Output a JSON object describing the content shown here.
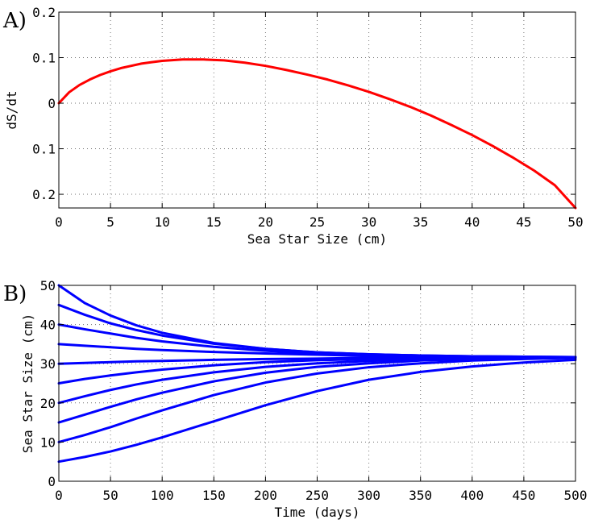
{
  "chart_data": [
    {
      "type": "line",
      "panel_label": "A)",
      "xlabel": "Sea Star Size (cm)",
      "ylabel": "dS/dt",
      "xlim": [
        0,
        50
      ],
      "ylim": [
        -0.23,
        0.2
      ],
      "x_ticks": [
        0,
        5,
        10,
        15,
        20,
        25,
        30,
        35,
        40,
        45,
        50
      ],
      "x_tick_labels": [
        "0",
        "5",
        "10",
        "15",
        "20",
        "25",
        "30",
        "35",
        "40",
        "45",
        "50"
      ],
      "y_ticks": [
        0.2,
        0.1,
        0,
        -0.1,
        -0.2
      ],
      "y_tick_labels": [
        "0.2",
        "0.1",
        "0",
        "0.1",
        "0.2"
      ],
      "grid": true,
      "color": "#ff0000",
      "series": [
        {
          "x": [
            0,
            1,
            2,
            3,
            4,
            5,
            6,
            7,
            8,
            9,
            10,
            12,
            14,
            16,
            18,
            20,
            22,
            24,
            26,
            28,
            30,
            32,
            34,
            36,
            38,
            40,
            42,
            44,
            46,
            48,
            50
          ],
          "y": [
            0.0,
            0.024,
            0.04,
            0.052,
            0.062,
            0.07,
            0.077,
            0.082,
            0.087,
            0.09,
            0.093,
            0.096,
            0.096,
            0.094,
            0.089,
            0.082,
            0.073,
            0.063,
            0.052,
            0.039,
            0.025,
            0.009,
            -0.008,
            -0.027,
            -0.048,
            -0.07,
            -0.094,
            -0.12,
            -0.148,
            -0.18,
            -0.23
          ]
        }
      ]
    },
    {
      "type": "line",
      "panel_label": "B)",
      "xlabel": "Time (days)",
      "ylabel": "Sea Star Size (cm)",
      "xlim": [
        0,
        500
      ],
      "ylim": [
        0,
        50
      ],
      "x_ticks": [
        0,
        50,
        100,
        150,
        200,
        250,
        300,
        350,
        400,
        450,
        500
      ],
      "x_tick_labels": [
        "0",
        "50",
        "100",
        "150",
        "200",
        "250",
        "300",
        "350",
        "400",
        "450",
        "500"
      ],
      "y_ticks": [
        0,
        10,
        20,
        30,
        40,
        50
      ],
      "y_tick_labels": [
        "0",
        "10",
        "20",
        "30",
        "40",
        "50"
      ],
      "grid": true,
      "color": "#0000ff",
      "series": [
        {
          "x": [
            0,
            25,
            50,
            75,
            100,
            150,
            200,
            250,
            300,
            350,
            400,
            450,
            500
          ],
          "y": [
            50,
            45.5,
            42.3,
            39.8,
            37.9,
            35.3,
            33.8,
            32.9,
            32.4,
            32.1,
            31.9,
            31.8,
            31.7
          ]
        },
        {
          "x": [
            0,
            25,
            50,
            75,
            100,
            150,
            200,
            250,
            300,
            350,
            400,
            450,
            500
          ],
          "y": [
            45,
            42.5,
            40.3,
            38.6,
            37.2,
            35.1,
            33.8,
            32.9,
            32.4,
            32.1,
            31.9,
            31.8,
            31.7
          ]
        },
        {
          "x": [
            0,
            25,
            50,
            75,
            100,
            150,
            200,
            250,
            300,
            350,
            400,
            450,
            500
          ],
          "y": [
            40,
            38.8,
            37.7,
            36.6,
            35.7,
            34.3,
            33.3,
            32.6,
            32.2,
            32.0,
            31.8,
            31.7,
            31.7
          ]
        },
        {
          "x": [
            0,
            25,
            50,
            75,
            100,
            150,
            200,
            250,
            300,
            350,
            400,
            450,
            500
          ],
          "y": [
            35,
            34.6,
            34.2,
            33.8,
            33.5,
            33.0,
            32.6,
            32.3,
            32.0,
            31.9,
            31.8,
            31.7,
            31.7
          ]
        },
        {
          "x": [
            0,
            25,
            50,
            75,
            100,
            150,
            200,
            250,
            300,
            350,
            400,
            450,
            500
          ],
          "y": [
            30,
            30.2,
            30.4,
            30.6,
            30.7,
            31.0,
            31.2,
            31.3,
            31.5,
            31.6,
            31.6,
            31.7,
            31.7
          ]
        },
        {
          "x": [
            0,
            25,
            50,
            75,
            100,
            150,
            200,
            250,
            300,
            350,
            400,
            450,
            500
          ],
          "y": [
            25,
            26.1,
            27.0,
            27.8,
            28.5,
            29.6,
            30.4,
            30.9,
            31.2,
            31.4,
            31.5,
            31.6,
            31.7
          ]
        },
        {
          "x": [
            0,
            25,
            50,
            75,
            100,
            150,
            200,
            250,
            300,
            350,
            400,
            450,
            500
          ],
          "y": [
            20,
            21.7,
            23.3,
            24.7,
            25.9,
            27.8,
            29.2,
            30.1,
            30.7,
            31.1,
            31.4,
            31.5,
            31.6
          ]
        },
        {
          "x": [
            0,
            25,
            50,
            75,
            100,
            150,
            200,
            250,
            300,
            350,
            400,
            450,
            500
          ],
          "y": [
            15,
            17.0,
            19.0,
            20.9,
            22.6,
            25.5,
            27.7,
            29.2,
            30.1,
            30.8,
            31.2,
            31.4,
            31.6
          ]
        },
        {
          "x": [
            0,
            25,
            50,
            75,
            100,
            150,
            200,
            250,
            300,
            350,
            400,
            450,
            500
          ],
          "y": [
            10,
            11.8,
            13.8,
            16.0,
            18.1,
            22.0,
            25.2,
            27.5,
            29.1,
            30.1,
            30.8,
            31.2,
            31.5
          ]
        },
        {
          "x": [
            0,
            25,
            50,
            75,
            100,
            150,
            200,
            250,
            300,
            350,
            400,
            450,
            500
          ],
          "y": [
            5,
            6.2,
            7.6,
            9.3,
            11.2,
            15.3,
            19.4,
            23.0,
            25.9,
            27.9,
            29.3,
            30.3,
            31.0
          ]
        }
      ]
    }
  ]
}
